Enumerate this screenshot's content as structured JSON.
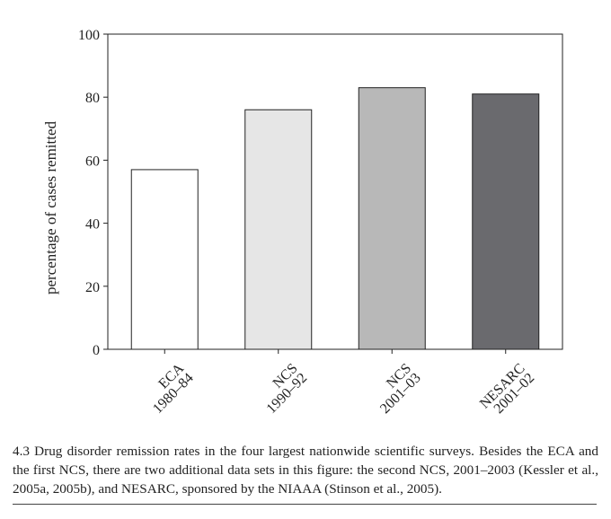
{
  "chart_data": {
    "type": "bar",
    "categories": [
      [
        "ECA",
        "1980–84"
      ],
      [
        "NCS",
        "1990–92"
      ],
      [
        "NCS",
        "2001–03"
      ],
      [
        "NESARC",
        "2001–02"
      ]
    ],
    "values": [
      57,
      76,
      83,
      81
    ],
    "bar_colors": [
      "#ffffff",
      "#e6e6e6",
      "#b8b8b8",
      "#6a6a6e"
    ],
    "ylabel": "percentage of cases remitted",
    "xlabel": "",
    "ylim": [
      0,
      100
    ],
    "yticks": [
      0,
      20,
      40,
      60,
      80,
      100
    ],
    "grid": false
  },
  "caption": "4.3 Drug disorder remission rates in the four largest nationwide scientific surveys. Besides the ECA and the first NCS, there are two additional data sets in this figure: the second NCS, 2001–2003 (Kessler et al., 2005a, 2005b), and NESARC, sponsored by the NIAAA (Stinson et al., 2005)."
}
